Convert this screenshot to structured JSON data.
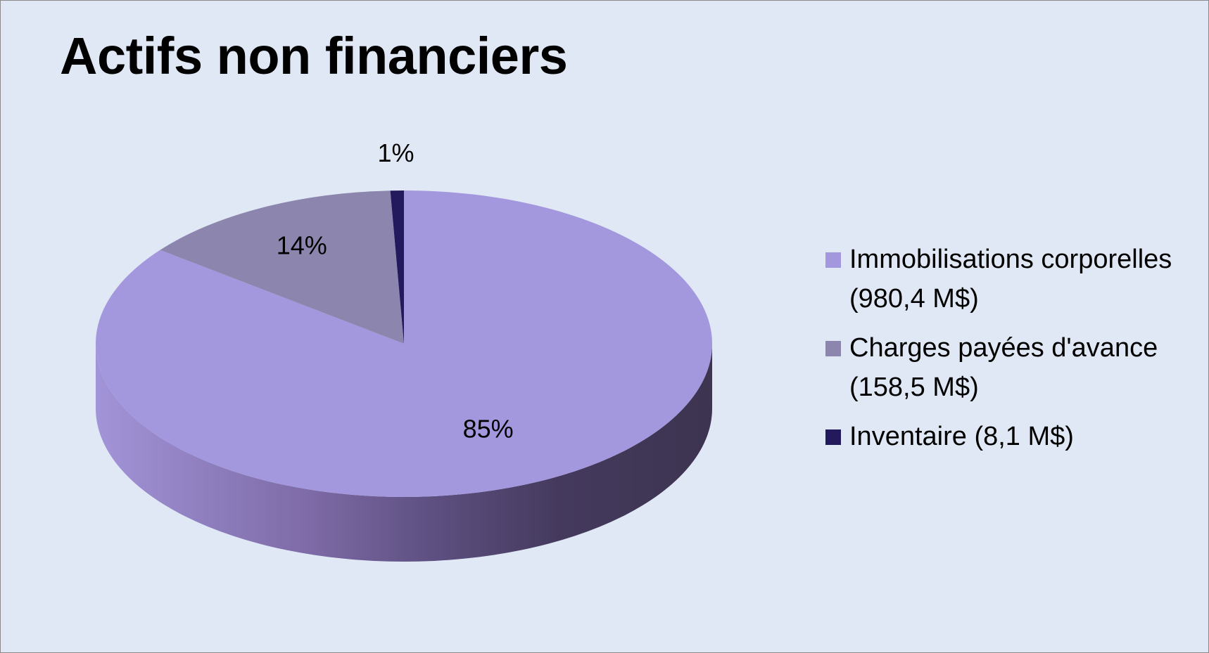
{
  "chart_data": {
    "type": "pie",
    "title": "Actifs non financiers",
    "slices": [
      {
        "label": "Immobilisations corporelles (980,4 M$)",
        "value": 980.4,
        "percent_label": "85%",
        "color": "#a398dd"
      },
      {
        "label": "Charges payées d'avance (158,5 M$)",
        "value": 158.5,
        "percent_label": "14%",
        "color": "#8c86ae"
      },
      {
        "label": "Inventaire (8,1 M$)",
        "value": 8.1,
        "percent_label": "1%",
        "color": "#231a5e"
      }
    ],
    "legend_position": "right",
    "style": "3d"
  },
  "colors": {
    "background": "#e1e8f5",
    "border": "#8a8a8a"
  }
}
